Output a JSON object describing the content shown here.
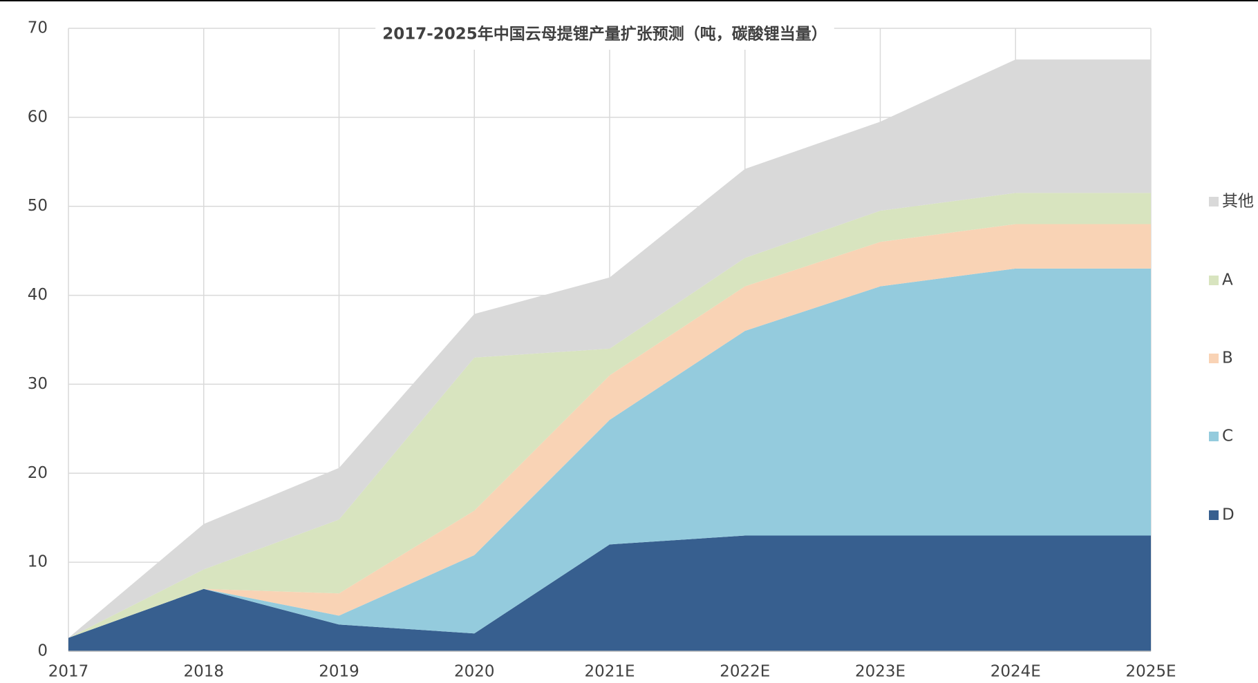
{
  "chart_data": {
    "type": "stacked_area",
    "title": "2017-2025年中国云母提锂产量扩张预测（吨，碳酸锂当量）",
    "categories": [
      "2017",
      "2018",
      "2019",
      "2020",
      "2021E",
      "2022E",
      "2023E",
      "2024E",
      "2025E"
    ],
    "series": [
      {
        "name": "D",
        "color": "#375f8f",
        "values": [
          1.5,
          7,
          3,
          2,
          12,
          13,
          13,
          13,
          13
        ]
      },
      {
        "name": "C",
        "color": "#94cbdd",
        "values": [
          0,
          0,
          1,
          8.8,
          14,
          23,
          28,
          30,
          30
        ]
      },
      {
        "name": "B",
        "color": "#f9d3b5",
        "values": [
          0,
          0,
          2.5,
          5,
          5,
          5,
          5,
          5,
          5
        ]
      },
      {
        "name": "A",
        "color": "#d8e4bf",
        "values": [
          0,
          2.2,
          8.3,
          17.2,
          3,
          3.2,
          3.5,
          3.5,
          3.5
        ]
      },
      {
        "name": "其他",
        "color": "#d9d9d9",
        "values": [
          0,
          5.1,
          5.8,
          4.9,
          8,
          10,
          10,
          15,
          15
        ]
      }
    ],
    "ylim": [
      0,
      70
    ],
    "yticks": [
      0,
      10,
      20,
      30,
      40,
      50,
      60,
      70
    ],
    "grid": true,
    "legend": "right"
  }
}
